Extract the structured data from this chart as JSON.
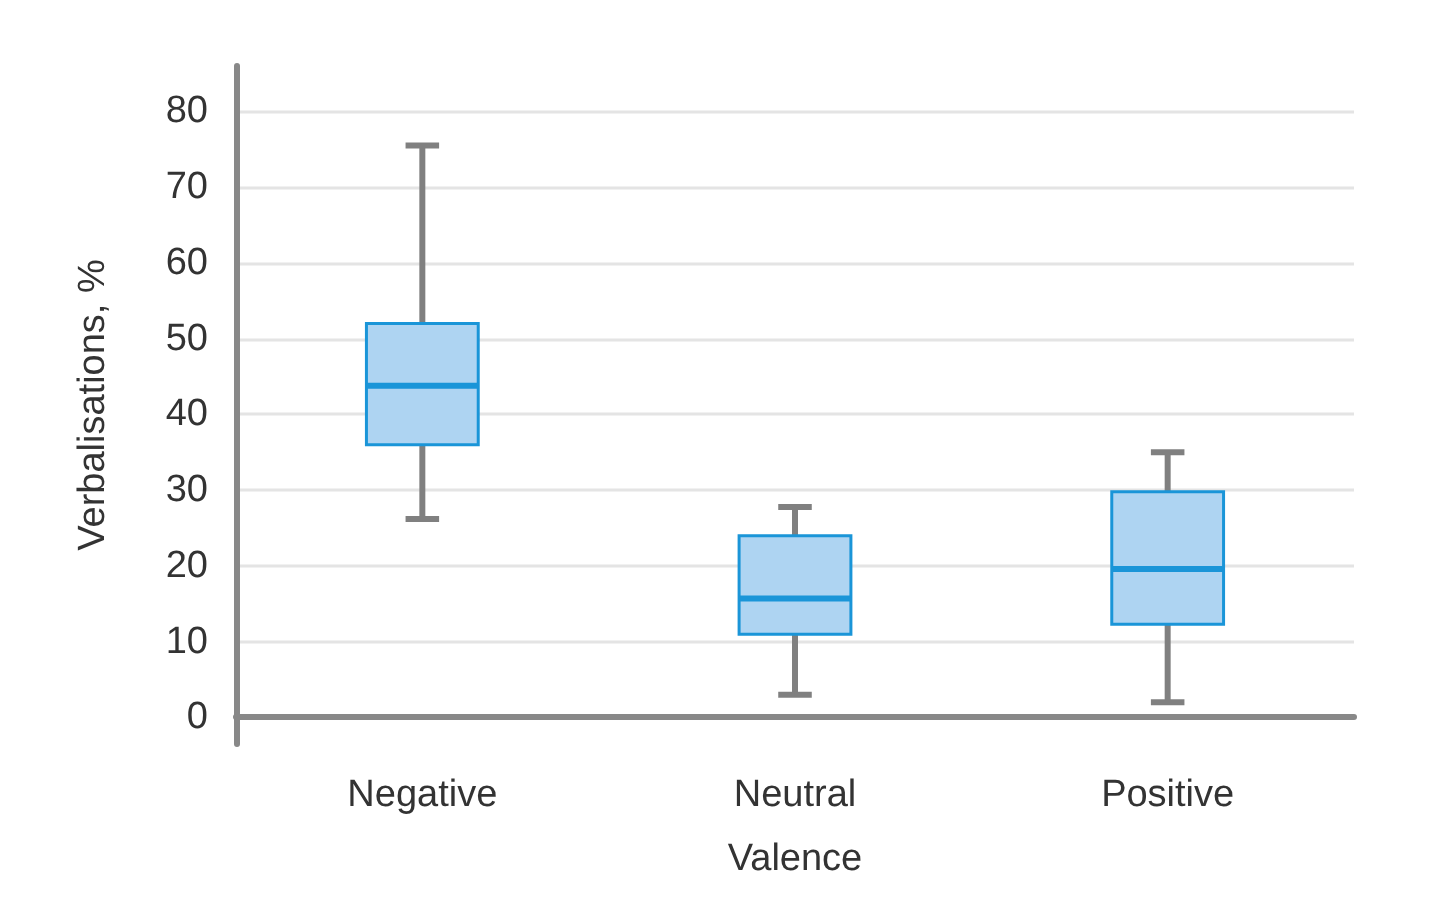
{
  "chart_data": {
    "type": "box",
    "xlabel": "Valence",
    "ylabel": "Verbalisations, %",
    "categories": [
      "Negative",
      "Neutral",
      "Positive"
    ],
    "boxes": [
      {
        "low": 26.2,
        "q1": 36,
        "median": 43.8,
        "q3": 52,
        "high": 75.5
      },
      {
        "low": 3,
        "q1": 11,
        "median": 15.7,
        "q3": 24,
        "high": 27.8
      },
      {
        "low": 2,
        "q1": 12.3,
        "median": 19.6,
        "q3": 29.8,
        "high": 35
      }
    ],
    "color": "#1a95d8",
    "ylim": [
      -3.5,
      86
    ],
    "yticks": [
      0,
      10,
      20,
      30,
      40,
      50,
      60,
      70,
      80
    ],
    "grid": "y"
  }
}
